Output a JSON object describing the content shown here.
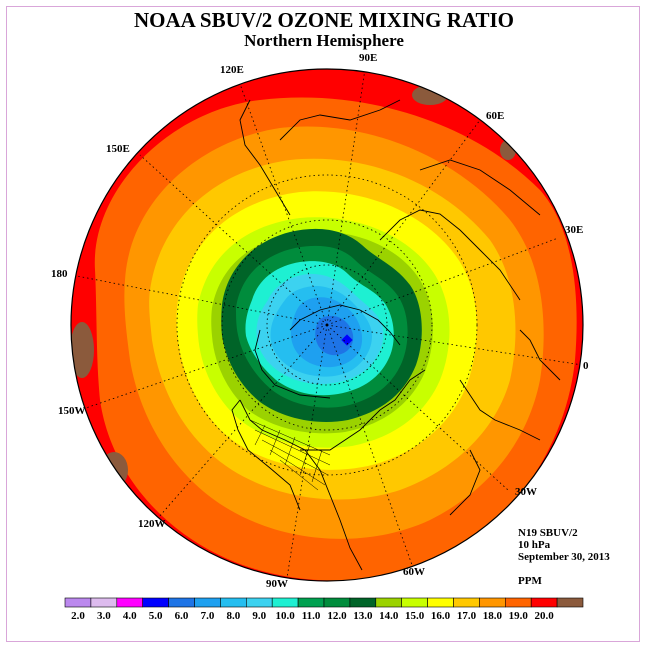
{
  "title": "NOAA SBUV/2 OZONE MIXING RATIO",
  "subtitle": "Northern Hemisphere",
  "longitude_labels": {
    "lon_90e": "90E",
    "lon_120e": "120E",
    "lon_60e": "60E",
    "lon_150e": "150E",
    "lon_30e": "30E",
    "lon_180": "180",
    "lon_0": "0",
    "lon_150w": "150W",
    "lon_30w": "30W",
    "lon_120w": "120W",
    "lon_60w": "60W",
    "lon_90w": "90W"
  },
  "info": {
    "satellite": "N19 SBUV/2",
    "level": "10 hPa",
    "date": "September 30, 2013",
    "units": "PPM"
  },
  "colorbar": {
    "labels": [
      "2.0",
      "3.0",
      "4.0",
      "5.0",
      "6.0",
      "7.0",
      "8.0",
      "9.0",
      "10.0",
      "11.0",
      "12.0",
      "13.0",
      "14.0",
      "15.0",
      "16.0",
      "17.0",
      "18.0",
      "19.0",
      "20.0"
    ],
    "colors": [
      "#bb88ee",
      "#ddbbee",
      "#ff00ff",
      "#0000ff",
      "#1e74e6",
      "#1ea0f0",
      "#25bef0",
      "#3cd2f0",
      "#1ef0d2",
      "#00a050",
      "#008c3c",
      "#006428",
      "#9bd200",
      "#c8ff00",
      "#ffff00",
      "#ffc800",
      "#ff9600",
      "#ff6400",
      "#ff0000",
      "#8b5a3c"
    ]
  },
  "map_fill_colors": {
    "ocean_far": "#ff0000",
    "band_18": "#ff6400",
    "band_17": "#ff9600",
    "band_16": "#ffc800",
    "band_15": "#ffff00",
    "band_14": "#c8ff00",
    "band_13": "#9bd200",
    "band_12": "#006428",
    "band_11": "#008c3c",
    "band_10": "#1ef0d2",
    "band_9": "#3cd2f0",
    "band_8": "#25bef0",
    "band_7": "#1ea0f0",
    "band_6": "#1e74e6",
    "band_5": "#0000ff",
    "band_20": "#8b5a3c"
  }
}
